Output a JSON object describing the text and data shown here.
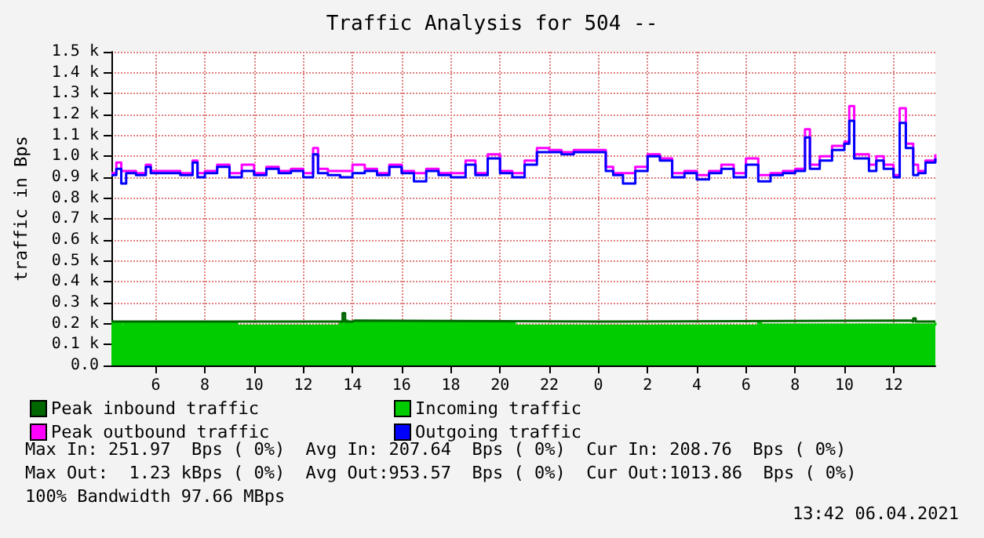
{
  "chart_data": {
    "type": "step",
    "title": "Traffic Analysis for 504 --",
    "ylabel": "traffic in Bps",
    "xlim": [
      "2021-04-05T04:12",
      "2021-04-06T13:42"
    ],
    "ylim": [
      0,
      1500
    ],
    "xticks": [
      {
        "value": "2021-04-05T06:00",
        "label": "6"
      },
      {
        "value": "2021-04-05T08:00",
        "label": "8"
      },
      {
        "value": "2021-04-05T10:00",
        "label": "10"
      },
      {
        "value": "2021-04-05T12:00",
        "label": "12"
      },
      {
        "value": "2021-04-05T14:00",
        "label": "14"
      },
      {
        "value": "2021-04-05T16:00",
        "label": "16"
      },
      {
        "value": "2021-04-05T18:00",
        "label": "18"
      },
      {
        "value": "2021-04-05T20:00",
        "label": "20"
      },
      {
        "value": "2021-04-05T22:00",
        "label": "22"
      },
      {
        "value": "2021-04-06T00:00",
        "label": "0"
      },
      {
        "value": "2021-04-06T02:00",
        "label": "2"
      },
      {
        "value": "2021-04-06T04:00",
        "label": "4"
      },
      {
        "value": "2021-04-06T06:00",
        "label": "6"
      },
      {
        "value": "2021-04-06T08:00",
        "label": "8"
      },
      {
        "value": "2021-04-06T10:00",
        "label": "10"
      },
      {
        "value": "2021-04-06T12:00",
        "label": "12"
      }
    ],
    "yticks": [
      {
        "value": 0,
        "label": "0.0"
      },
      {
        "value": 100,
        "label": "0.1 k"
      },
      {
        "value": 200,
        "label": "0.2 k"
      },
      {
        "value": 300,
        "label": "0.3 k"
      },
      {
        "value": 400,
        "label": "0.4 k"
      },
      {
        "value": 500,
        "label": "0.5 k"
      },
      {
        "value": 600,
        "label": "0.6 k"
      },
      {
        "value": 700,
        "label": "0.7 k"
      },
      {
        "value": 800,
        "label": "0.8 k"
      },
      {
        "value": 900,
        "label": "0.9 k"
      },
      {
        "value": 1000,
        "label": "1.0 k"
      },
      {
        "value": 1100,
        "label": "1.1 k"
      },
      {
        "value": 1200,
        "label": "1.2 k"
      },
      {
        "value": 1300,
        "label": "1.3 k"
      },
      {
        "value": 1400,
        "label": "1.4 k"
      },
      {
        "value": 1500,
        "label": "1.5 k"
      }
    ],
    "series": [
      {
        "name": "Incoming traffic",
        "type": "area",
        "color": "#00cc00",
        "x": [
          "2021-04-05T04:12",
          "2021-04-05T04:30",
          "2021-04-05T04:36",
          "2021-04-05T04:42",
          "2021-04-05T09:12",
          "2021-04-05T09:18",
          "2021-04-05T13:30",
          "2021-04-05T13:36",
          "2021-04-05T13:48",
          "2021-04-05T20:30",
          "2021-04-05T20:36",
          "2021-04-06T06:30",
          "2021-04-06T06:36",
          "2021-04-06T13:42"
        ],
        "values": [
          205,
          205,
          180,
          205,
          205,
          190,
          205,
          215,
          205,
          205,
          190,
          205,
          195,
          205
        ]
      },
      {
        "name": "Peak inbound traffic",
        "color": "#006600",
        "x": [
          "2021-04-05T04:12",
          "2021-04-05T13:30",
          "2021-04-05T13:36",
          "2021-04-05T13:42",
          "2021-04-05T14:00",
          "2021-04-05T14:06",
          "2021-04-06T01:00",
          "2021-04-06T01:06",
          "2021-04-06T12:42",
          "2021-04-06T12:48",
          "2021-04-06T12:54",
          "2021-04-06T13:42"
        ],
        "values": [
          210,
          210,
          250,
          210,
          215,
          210,
          210,
          215,
          210,
          225,
          210,
          210
        ]
      },
      {
        "name": "Peak outbound traffic",
        "color": "#ff00ff",
        "x": [
          "2021-04-05T04:12",
          "2021-04-05T04:24",
          "2021-04-05T04:36",
          "2021-04-05T04:48",
          "2021-04-05T05:12",
          "2021-04-05T05:36",
          "2021-04-05T05:48",
          "2021-04-05T06:30",
          "2021-04-05T07:00",
          "2021-04-05T07:30",
          "2021-04-05T07:42",
          "2021-04-05T08:00",
          "2021-04-05T08:30",
          "2021-04-05T09:00",
          "2021-04-05T09:30",
          "2021-04-05T10:00",
          "2021-04-05T10:30",
          "2021-04-05T11:00",
          "2021-04-05T11:30",
          "2021-04-05T12:00",
          "2021-04-05T12:24",
          "2021-04-05T12:36",
          "2021-04-05T13:00",
          "2021-04-05T13:30",
          "2021-04-05T14:00",
          "2021-04-05T14:30",
          "2021-04-05T15:00",
          "2021-04-05T15:30",
          "2021-04-05T16:00",
          "2021-04-05T16:30",
          "2021-04-05T17:00",
          "2021-04-05T17:30",
          "2021-04-05T18:00",
          "2021-04-05T18:36",
          "2021-04-05T19:00",
          "2021-04-05T19:30",
          "2021-04-05T20:00",
          "2021-04-05T20:30",
          "2021-04-05T21:00",
          "2021-04-05T21:30",
          "2021-04-05T22:00",
          "2021-04-05T22:30",
          "2021-04-05T23:00",
          "2021-04-05T23:30",
          "2021-04-06T00:00",
          "2021-04-06T00:18",
          "2021-04-06T00:36",
          "2021-04-06T01:00",
          "2021-04-06T01:30",
          "2021-04-06T02:00",
          "2021-04-06T02:30",
          "2021-04-06T03:00",
          "2021-04-06T03:30",
          "2021-04-06T04:00",
          "2021-04-06T04:30",
          "2021-04-06T05:00",
          "2021-04-06T05:30",
          "2021-04-06T06:00",
          "2021-04-06T06:30",
          "2021-04-06T07:00",
          "2021-04-06T07:30",
          "2021-04-06T08:00",
          "2021-04-06T08:24",
          "2021-04-06T08:36",
          "2021-04-06T09:00",
          "2021-04-06T09:30",
          "2021-04-06T10:00",
          "2021-04-06T10:12",
          "2021-04-06T10:24",
          "2021-04-06T11:00",
          "2021-04-06T11:18",
          "2021-04-06T11:36",
          "2021-04-06T12:00",
          "2021-04-06T12:15",
          "2021-04-06T12:30",
          "2021-04-06T12:48",
          "2021-04-06T13:00",
          "2021-04-06T13:18",
          "2021-04-06T13:42"
        ],
        "values": [
          920,
          970,
          930,
          930,
          920,
          960,
          930,
          930,
          920,
          980,
          920,
          930,
          960,
          920,
          960,
          920,
          950,
          930,
          940,
          920,
          1040,
          940,
          930,
          930,
          960,
          940,
          920,
          960,
          930,
          920,
          940,
          920,
          920,
          980,
          920,
          1010,
          930,
          920,
          980,
          1040,
          1030,
          1020,
          1030,
          1030,
          1030,
          950,
          920,
          920,
          950,
          1010,
          990,
          920,
          930,
          910,
          930,
          960,
          920,
          990,
          910,
          920,
          930,
          940,
          1130,
          960,
          1000,
          1050,
          1070,
          1240,
          1010,
          960,
          1000,
          960,
          910,
          1230,
          1060,
          960,
          930,
          980,
          1010
        ]
      },
      {
        "name": "Outgoing traffic",
        "color": "#0000ff",
        "x": [
          "2021-04-05T04:12",
          "2021-04-05T04:24",
          "2021-04-05T04:36",
          "2021-04-05T04:48",
          "2021-04-05T05:12",
          "2021-04-05T05:36",
          "2021-04-05T05:48",
          "2021-04-05T06:30",
          "2021-04-05T07:00",
          "2021-04-05T07:30",
          "2021-04-05T07:42",
          "2021-04-05T08:00",
          "2021-04-05T08:30",
          "2021-04-05T09:00",
          "2021-04-05T09:30",
          "2021-04-05T10:00",
          "2021-04-05T10:30",
          "2021-04-05T11:00",
          "2021-04-05T11:30",
          "2021-04-05T12:00",
          "2021-04-05T12:24",
          "2021-04-05T12:36",
          "2021-04-05T13:00",
          "2021-04-05T13:30",
          "2021-04-05T14:00",
          "2021-04-05T14:30",
          "2021-04-05T15:00",
          "2021-04-05T15:30",
          "2021-04-05T16:00",
          "2021-04-05T16:30",
          "2021-04-05T17:00",
          "2021-04-05T17:30",
          "2021-04-05T18:00",
          "2021-04-05T18:36",
          "2021-04-05T19:00",
          "2021-04-05T19:30",
          "2021-04-05T20:00",
          "2021-04-05T20:30",
          "2021-04-05T21:00",
          "2021-04-05T21:30",
          "2021-04-05T22:00",
          "2021-04-05T22:30",
          "2021-04-05T23:00",
          "2021-04-05T23:30",
          "2021-04-06T00:00",
          "2021-04-06T00:18",
          "2021-04-06T00:36",
          "2021-04-06T01:00",
          "2021-04-06T01:30",
          "2021-04-06T02:00",
          "2021-04-06T02:30",
          "2021-04-06T03:00",
          "2021-04-06T03:30",
          "2021-04-06T04:00",
          "2021-04-06T04:30",
          "2021-04-06T05:00",
          "2021-04-06T05:30",
          "2021-04-06T06:00",
          "2021-04-06T06:30",
          "2021-04-06T07:00",
          "2021-04-06T07:30",
          "2021-04-06T08:00",
          "2021-04-06T08:24",
          "2021-04-06T08:36",
          "2021-04-06T09:00",
          "2021-04-06T09:30",
          "2021-04-06T10:00",
          "2021-04-06T10:12",
          "2021-04-06T10:24",
          "2021-04-06T11:00",
          "2021-04-06T11:18",
          "2021-04-06T11:36",
          "2021-04-06T12:00",
          "2021-04-06T12:15",
          "2021-04-06T12:30",
          "2021-04-06T12:48",
          "2021-04-06T13:00",
          "2021-04-06T13:18",
          "2021-04-06T13:42"
        ],
        "values": [
          910,
          940,
          870,
          920,
          910,
          950,
          920,
          920,
          910,
          970,
          900,
          920,
          950,
          900,
          930,
          910,
          940,
          920,
          930,
          900,
          1010,
          920,
          910,
          900,
          920,
          930,
          910,
          950,
          920,
          880,
          930,
          910,
          900,
          960,
          910,
          990,
          920,
          900,
          960,
          1020,
          1020,
          1010,
          1020,
          1020,
          1020,
          930,
          910,
          870,
          930,
          1000,
          980,
          900,
          920,
          890,
          920,
          940,
          900,
          960,
          880,
          910,
          920,
          930,
          1090,
          940,
          980,
          1030,
          1060,
          1170,
          990,
          930,
          980,
          940,
          900,
          1160,
          1040,
          910,
          920,
          970,
          990
        ]
      }
    ],
    "grid": true,
    "legend": "bottom",
    "marker": "none",
    "line_style": "solid",
    "annotations": [
      "Max In: 251.97  Bps ( 0%)  Avg In: 207.64  Bps ( 0%)  Cur In: 208.76  Bps ( 0%)",
      "Max Out:  1.23 kBps ( 0%)  Avg Out:953.57  Bps ( 0%)  Cur Out:1013.86  Bps ( 0%)",
      "100% Bandwidth 97.66 MBps",
      "13:42 06.04.2021"
    ]
  }
}
